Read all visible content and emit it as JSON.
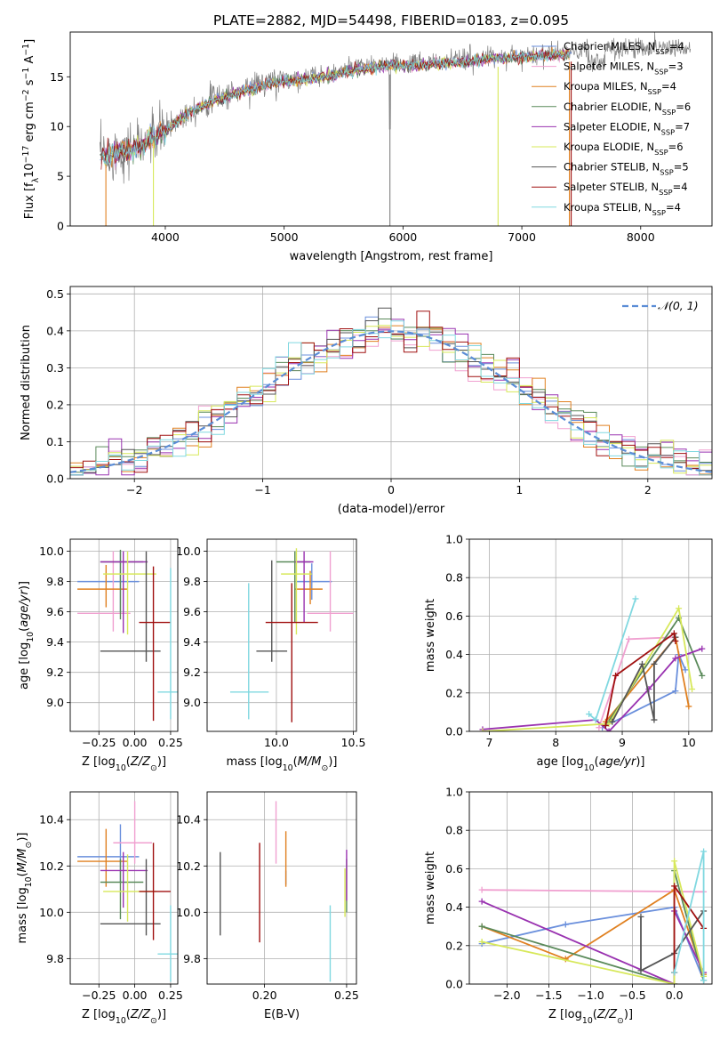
{
  "figure_title": "PLATE=2882, MJD=54498, FIBERID=0183, z=0.095",
  "colors": {
    "Chabrier MILES": "#6a8fdc",
    "Salpeter MILES": "#f0a0d0",
    "Kroupa MILES": "#e08020",
    "Chabrier ELODIE": "#5a8a5a",
    "Salpeter ELODIE": "#9932b0",
    "Kroupa ELODIE": "#d7e85a",
    "Chabrier STELIB": "#555555",
    "Salpeter STELIB": "#a01010",
    "Kroupa STELIB": "#80d8e0",
    "data": "#808080",
    "normal": "#5b8dd6"
  },
  "chart_data": [
    {
      "id": "spectrum",
      "type": "line",
      "title": "PLATE=2882, MJD=54498, FIBERID=0183, z=0.095",
      "xlabel": "wavelength [Angstrom, rest frame]",
      "ylabel": "Flux [fλ10⁻¹⁷ erg cm⁻² s⁻¹ A⁻¹]",
      "xlim": [
        3200,
        8600
      ],
      "ylim": [
        0,
        19.5
      ],
      "xticks": [
        4000,
        5000,
        6000,
        7000,
        8000
      ],
      "yticks": [
        0,
        5,
        10,
        15
      ],
      "legend_position": "top-right",
      "legend": [
        {
          "label": "Chabrier MILES, N",
          "sub": "SSP",
          "tail": "=4"
        },
        {
          "label": "Salpeter MILES, N",
          "sub": "SSP",
          "tail": "=3"
        },
        {
          "label": "Kroupa MILES, N",
          "sub": "SSP",
          "tail": "=4"
        },
        {
          "label": "Chabrier ELODIE, N",
          "sub": "SSP",
          "tail": "=6"
        },
        {
          "label": "Salpeter ELODIE, N",
          "sub": "SSP",
          "tail": "=7"
        },
        {
          "label": "Kroupa ELODIE, N",
          "sub": "SSP",
          "tail": "=6"
        },
        {
          "label": "Chabrier STELIB, N",
          "sub": "SSP",
          "tail": "=5"
        },
        {
          "label": "Salpeter STELIB, N",
          "sub": "SSP",
          "tail": "=4"
        },
        {
          "label": "Kroupa STELIB, N",
          "sub": "SSP",
          "tail": "=4"
        }
      ],
      "continuum": {
        "x": [
          3450,
          3600,
          3800,
          4000,
          4200,
          4400,
          4600,
          4800,
          5000,
          5200,
          5400,
          5600,
          5800,
          6000,
          6200,
          6400,
          6600,
          6800,
          7000,
          7200,
          7400,
          7600,
          7800,
          8000,
          8200,
          8400
        ],
        "y": [
          7.0,
          7.6,
          8.2,
          9.7,
          11.6,
          12.8,
          13.5,
          14.3,
          14.7,
          15.0,
          15.3,
          15.9,
          16.2,
          16.3,
          16.4,
          16.6,
          16.8,
          17.0,
          17.2,
          17.3,
          17.5,
          17.8,
          17.8,
          17.9,
          18.0,
          18.0
        ]
      },
      "notes": "model spectra end at 7400 (Salpeter/Kroupa MILES); deep dips near 3500, 3900, 6800, 7400"
    },
    {
      "id": "residuals",
      "type": "step",
      "xlabel": "(data-model)/error",
      "ylabel": "Normed distribution",
      "xlim": [
        -2.5,
        2.5
      ],
      "ylim": [
        0,
        0.52
      ],
      "xticks": [
        -2,
        -1,
        0,
        1,
        2
      ],
      "yticks": [
        0.0,
        0.1,
        0.2,
        0.3,
        0.4,
        0.5
      ],
      "grid": true,
      "legend": [
        {
          "label": "𝒩(0, 1)",
          "style": "dashed"
        }
      ],
      "legend_position": "top-right",
      "bin_width": 0.1,
      "bin_start": -2.5
    },
    {
      "id": "age_vs_Z",
      "type": "errorbar",
      "xlabel": "Z [log₁₀(Z/Z⊙)]",
      "ylabel": "age  [log₁₀(age/yr)]",
      "xlim": [
        -0.45,
        0.3
      ],
      "ylim": [
        8.81,
        10.08
      ],
      "xticks": [
        -0.25,
        0.0,
        0.25
      ],
      "xticklabels": [
        "−0.25",
        "0.00",
        "0.25"
      ],
      "yticks": [
        9.0,
        9.2,
        9.4,
        9.6,
        9.8,
        10.0
      ],
      "grid": true,
      "points": [
        {
          "model": "Chabrier MILES",
          "x": -0.1,
          "xerr": [
            0.3,
            0.13
          ],
          "y": 9.8,
          "yerr": [
            0.2,
            0.2
          ]
        },
        {
          "model": "Salpeter MILES",
          "x": -0.15,
          "xerr": [
            0.25,
            0.12
          ],
          "y": 9.59,
          "yerr": [
            0.12,
            0.41
          ]
        },
        {
          "model": "Kroupa MILES",
          "x": -0.2,
          "xerr": [
            0.2,
            0.15
          ],
          "y": 9.75,
          "yerr": [
            0.12,
            0.16
          ]
        },
        {
          "model": "Chabrier ELODIE",
          "x": -0.1,
          "xerr": [
            0.14,
            0.16
          ],
          "y": 9.93,
          "yerr": [
            0.38,
            0.08
          ]
        },
        {
          "model": "Salpeter ELODIE",
          "x": -0.08,
          "xerr": [
            0.16,
            0.17
          ],
          "y": 9.93,
          "yerr": [
            0.47,
            0.07
          ]
        },
        {
          "model": "Kroupa ELODIE",
          "x": -0.05,
          "xerr": [
            0.17,
            0.2
          ],
          "y": 9.85,
          "yerr": [
            0.4,
            0.15
          ]
        },
        {
          "model": "Chabrier STELIB",
          "x": 0.08,
          "xerr": [
            0.32,
            0.1
          ],
          "y": 9.34,
          "yerr": [
            0.07,
            0.66
          ]
        },
        {
          "model": "Salpeter STELIB",
          "x": 0.13,
          "xerr": [
            0.1,
            0.12
          ],
          "y": 9.53,
          "yerr": [
            0.65,
            0.37
          ]
        },
        {
          "model": "Kroupa STELIB",
          "x": 0.25,
          "xerr": [
            0.09,
            0.05
          ],
          "y": 9.07,
          "yerr": [
            0.18,
            0.82
          ]
        }
      ]
    },
    {
      "id": "age_vs_mass",
      "type": "errorbar",
      "xlabel": "mass [log₁₀(M/M⊙)]",
      "ylabel": "",
      "xlim": [
        9.55,
        10.52
      ],
      "ylim": [
        8.81,
        10.08
      ],
      "xticks": [
        10.0,
        10.5
      ],
      "xticklabels": [
        "10.0",
        "10.5"
      ],
      "yticks": [
        9.0,
        9.2,
        9.4,
        9.6,
        9.8,
        10.0
      ],
      "grid": true,
      "points": [
        {
          "model": "Chabrier MILES",
          "x": 10.23,
          "xerr": [
            0.1,
            0.13
          ],
          "y": 9.8,
          "yerr": [
            0.12,
            0.12
          ]
        },
        {
          "model": "Salpeter MILES",
          "x": 10.35,
          "xerr": [
            0.15,
            0.15
          ],
          "y": 9.59,
          "yerr": [
            0.12,
            0.41
          ]
        },
        {
          "model": "Kroupa MILES",
          "x": 10.22,
          "xerr": [
            0.1,
            0.08
          ],
          "y": 9.75,
          "yerr": [
            0.1,
            0.12
          ]
        },
        {
          "model": "Chabrier ELODIE",
          "x": 10.12,
          "xerr": [
            0.12,
            0.1
          ],
          "y": 9.93,
          "yerr": [
            0.4,
            0.07
          ]
        },
        {
          "model": "Salpeter ELODIE",
          "x": 10.18,
          "xerr": [
            0.06,
            0.06
          ],
          "y": 9.93,
          "yerr": [
            0.4,
            0.07
          ]
        },
        {
          "model": "Kroupa ELODIE",
          "x": 10.13,
          "xerr": [
            0.1,
            0.1
          ],
          "y": 9.85,
          "yerr": [
            0.4,
            0.17
          ]
        },
        {
          "model": "Chabrier STELIB",
          "x": 9.97,
          "xerr": [
            0.1,
            0.1
          ],
          "y": 9.34,
          "yerr": [
            0.07,
            0.6
          ]
        },
        {
          "model": "Salpeter STELIB",
          "x": 10.1,
          "xerr": [
            0.17,
            0.17
          ],
          "y": 9.53,
          "yerr": [
            0.66,
            0.26
          ]
        },
        {
          "model": "Kroupa STELIB",
          "x": 9.82,
          "xerr": [
            0.12,
            0.13
          ],
          "y": 9.07,
          "yerr": [
            0.18,
            0.72
          ]
        }
      ]
    },
    {
      "id": "weight_vs_age",
      "type": "line",
      "xlabel": "age  [log₁₀(age/yr)]",
      "ylabel": "mass weight",
      "xlim": [
        6.7,
        10.35
      ],
      "ylim": [
        0,
        1.0
      ],
      "xticks": [
        7,
        8,
        9,
        10
      ],
      "yticks": [
        0.0,
        0.2,
        0.4,
        0.6,
        0.8,
        1.0
      ],
      "grid": true,
      "series": [
        {
          "model": "Chabrier MILES",
          "x": [
            8.7,
            9.8,
            9.85,
            9.95
          ],
          "y": [
            0.02,
            0.21,
            0.4,
            0.32
          ]
        },
        {
          "model": "Salpeter MILES",
          "x": [
            8.65,
            9.1,
            9.8
          ],
          "y": [
            0.02,
            0.48,
            0.49
          ]
        },
        {
          "model": "Kroupa MILES",
          "x": [
            8.75,
            9.8,
            10.0
          ],
          "y": [
            0.05,
            0.49,
            0.13
          ]
        },
        {
          "model": "Chabrier ELODIE",
          "x": [
            8.75,
            9.85,
            10.2
          ],
          "y": [
            0.03,
            0.59,
            0.29
          ]
        },
        {
          "model": "Salpeter ELODIE",
          "x": [
            6.9,
            8.6,
            8.8,
            9.4,
            9.8,
            10.2
          ],
          "y": [
            0.01,
            0.06,
            0.0,
            0.22,
            0.38,
            0.43
          ]
        },
        {
          "model": "Kroupa ELODIE",
          "x": [
            6.9,
            8.8,
            9.85,
            10.05
          ],
          "y": [
            0.0,
            0.04,
            0.64,
            0.22
          ]
        },
        {
          "model": "Chabrier STELIB",
          "x": [
            8.85,
            9.3,
            9.48,
            9.48,
            9.8
          ],
          "y": [
            0.05,
            0.35,
            0.06,
            0.35,
            0.49
          ]
        },
        {
          "model": "Salpeter STELIB",
          "x": [
            8.75,
            8.9,
            9.78,
            9.8
          ],
          "y": [
            0.03,
            0.29,
            0.51,
            0.47
          ]
        },
        {
          "model": "Kroupa STELIB",
          "x": [
            8.5,
            8.6,
            9.2
          ],
          "y": [
            0.09,
            0.06,
            0.69
          ]
        }
      ]
    },
    {
      "id": "mass_vs_Z",
      "type": "errorbar",
      "xlabel": "Z [log₁₀(Z/Z⊙)]",
      "ylabel": "mass [log₁₀(M/M⊙)]",
      "xlim": [
        -0.45,
        0.3
      ],
      "ylim": [
        9.69,
        10.52
      ],
      "xticks": [
        -0.25,
        0.0,
        0.25
      ],
      "xticklabels": [
        "−0.25",
        "0.00",
        "0.25"
      ],
      "yticks": [
        9.8,
        10.0,
        10.2,
        10.4
      ],
      "grid": true,
      "points": [
        {
          "model": "Chabrier MILES",
          "x": -0.1,
          "xerr": [
            0.3,
            0.13
          ],
          "y": 10.24,
          "yerr": [
            0.11,
            0.14
          ]
        },
        {
          "model": "Salpeter MILES",
          "x": 0.0,
          "xerr": [
            0.15,
            0.12
          ],
          "y": 10.3,
          "yerr": [
            0.09,
            0.18
          ]
        },
        {
          "model": "Kroupa MILES",
          "x": -0.2,
          "xerr": [
            0.2,
            0.15
          ],
          "y": 10.22,
          "yerr": [
            0.11,
            0.14
          ]
        },
        {
          "model": "Chabrier ELODIE",
          "x": -0.1,
          "xerr": [
            0.14,
            0.16
          ],
          "y": 10.13,
          "yerr": [
            0.16,
            0.1
          ]
        },
        {
          "model": "Salpeter ELODIE",
          "x": -0.08,
          "xerr": [
            0.16,
            0.17
          ],
          "y": 10.18,
          "yerr": [
            0.16,
            0.08
          ]
        },
        {
          "model": "Kroupa ELODIE",
          "x": -0.05,
          "xerr": [
            0.17,
            0.2
          ],
          "y": 10.09,
          "yerr": [
            0.13,
            0.16
          ]
        },
        {
          "model": "Chabrier STELIB",
          "x": 0.08,
          "xerr": [
            0.32,
            0.1
          ],
          "y": 9.95,
          "yerr": [
            0.05,
            0.28
          ]
        },
        {
          "model": "Salpeter STELIB",
          "x": 0.13,
          "xerr": [
            0.1,
            0.12
          ],
          "y": 10.09,
          "yerr": [
            0.21,
            0.21
          ]
        },
        {
          "model": "Kroupa STELIB",
          "x": 0.25,
          "xerr": [
            0.09,
            0.05
          ],
          "y": 9.82,
          "yerr": [
            0.12,
            0.21
          ]
        }
      ]
    },
    {
      "id": "mass_vs_EBV",
      "type": "errorbar",
      "xlabel": "E(B-V)",
      "ylabel": "",
      "xlim": [
        0.165,
        0.256
      ],
      "ylim": [
        9.69,
        10.52
      ],
      "xticks": [
        0.2,
        0.25
      ],
      "xticklabels": [
        "0.20",
        "0.25"
      ],
      "yticks": [
        9.8,
        10.0,
        10.2,
        10.4
      ],
      "grid": true,
      "points": [
        {
          "model": "Chabrier MILES",
          "x": 0.213,
          "xerr": [
            0,
            0
          ],
          "y": 10.15,
          "yerr": [
            0.03,
            0.03
          ]
        },
        {
          "model": "Salpeter MILES",
          "x": 0.207,
          "xerr": [
            0,
            0
          ],
          "y": 10.34,
          "yerr": [
            0.13,
            0.14
          ]
        },
        {
          "model": "Kroupa MILES",
          "x": 0.213,
          "xerr": [
            0,
            0
          ],
          "y": 10.23,
          "yerr": [
            0.12,
            0.12
          ]
        },
        {
          "model": "Chabrier ELODIE",
          "x": 0.25,
          "xerr": [
            0,
            0
          ],
          "y": 10.13,
          "yerr": [
            0.13,
            0.1
          ]
        },
        {
          "model": "Salpeter ELODIE",
          "x": 0.25,
          "xerr": [
            0,
            0
          ],
          "y": 10.18,
          "yerr": [
            0.13,
            0.09
          ]
        },
        {
          "model": "Kroupa ELODIE",
          "x": 0.249,
          "xerr": [
            0,
            0
          ],
          "y": 10.12,
          "yerr": [
            0.14,
            0.07
          ]
        },
        {
          "model": "Chabrier STELIB",
          "x": 0.173,
          "xerr": [
            0,
            0
          ],
          "y": 10.08,
          "yerr": [
            0.18,
            0.18
          ]
        },
        {
          "model": "Salpeter STELIB",
          "x": 0.197,
          "xerr": [
            0,
            0
          ],
          "y": 10.08,
          "yerr": [
            0.21,
            0.22
          ]
        },
        {
          "model": "Kroupa STELIB",
          "x": 0.24,
          "xerr": [
            0,
            0
          ],
          "y": 9.82,
          "yerr": [
            0.12,
            0.21
          ]
        }
      ]
    },
    {
      "id": "weight_vs_Z",
      "type": "line",
      "xlabel": "Z [log₁₀(Z/Z⊙)]",
      "ylabel": "mass weight",
      "xlim": [
        -2.45,
        0.45
      ],
      "ylim": [
        0,
        1.0
      ],
      "xticks": [
        -2.0,
        -1.5,
        -1.0,
        -0.5,
        0.0
      ],
      "xticklabels": [
        "−2.0",
        "−1.5",
        "−1.0",
        "−0.5",
        "0.0"
      ],
      "yticks": [
        0.0,
        0.2,
        0.4,
        0.6,
        0.8,
        1.0
      ],
      "grid": true,
      "series": [
        {
          "model": "Chabrier MILES",
          "x": [
            -2.3,
            -1.3,
            0.0,
            0.35
          ],
          "y": [
            0.21,
            0.31,
            0.4,
            0.02
          ]
        },
        {
          "model": "Salpeter MILES",
          "x": [
            -2.3,
            0.35
          ],
          "y": [
            0.49,
            0.48
          ]
        },
        {
          "model": "Kroupa MILES",
          "x": [
            -2.3,
            -1.3,
            0.0,
            0.35
          ],
          "y": [
            0.3,
            0.13,
            0.49,
            0.05
          ]
        },
        {
          "model": "Chabrier ELODIE",
          "x": [
            -2.3,
            0.0,
            0.0,
            0.35
          ],
          "y": [
            0.3,
            0.0,
            0.59,
            0.02
          ]
        },
        {
          "model": "Salpeter ELODIE",
          "x": [
            -2.3,
            0.0,
            0.0,
            0.35
          ],
          "y": [
            0.43,
            0.0,
            0.38,
            0.06
          ]
        },
        {
          "model": "Kroupa ELODIE",
          "x": [
            -2.3,
            0.0,
            0.0,
            0.35
          ],
          "y": [
            0.22,
            0.0,
            0.64,
            0.04
          ]
        },
        {
          "model": "Chabrier STELIB",
          "x": [
            -0.4,
            -0.4,
            0.0,
            0.35
          ],
          "y": [
            0.35,
            0.07,
            0.16,
            0.38
          ]
        },
        {
          "model": "Salpeter STELIB",
          "x": [
            0.0,
            0.0,
            0.35
          ],
          "y": [
            0.06,
            0.51,
            0.29
          ]
        },
        {
          "model": "Kroupa STELIB",
          "x": [
            0.0,
            0.35,
            0.35
          ],
          "y": [
            0.06,
            0.69,
            0.02
          ]
        }
      ]
    }
  ]
}
